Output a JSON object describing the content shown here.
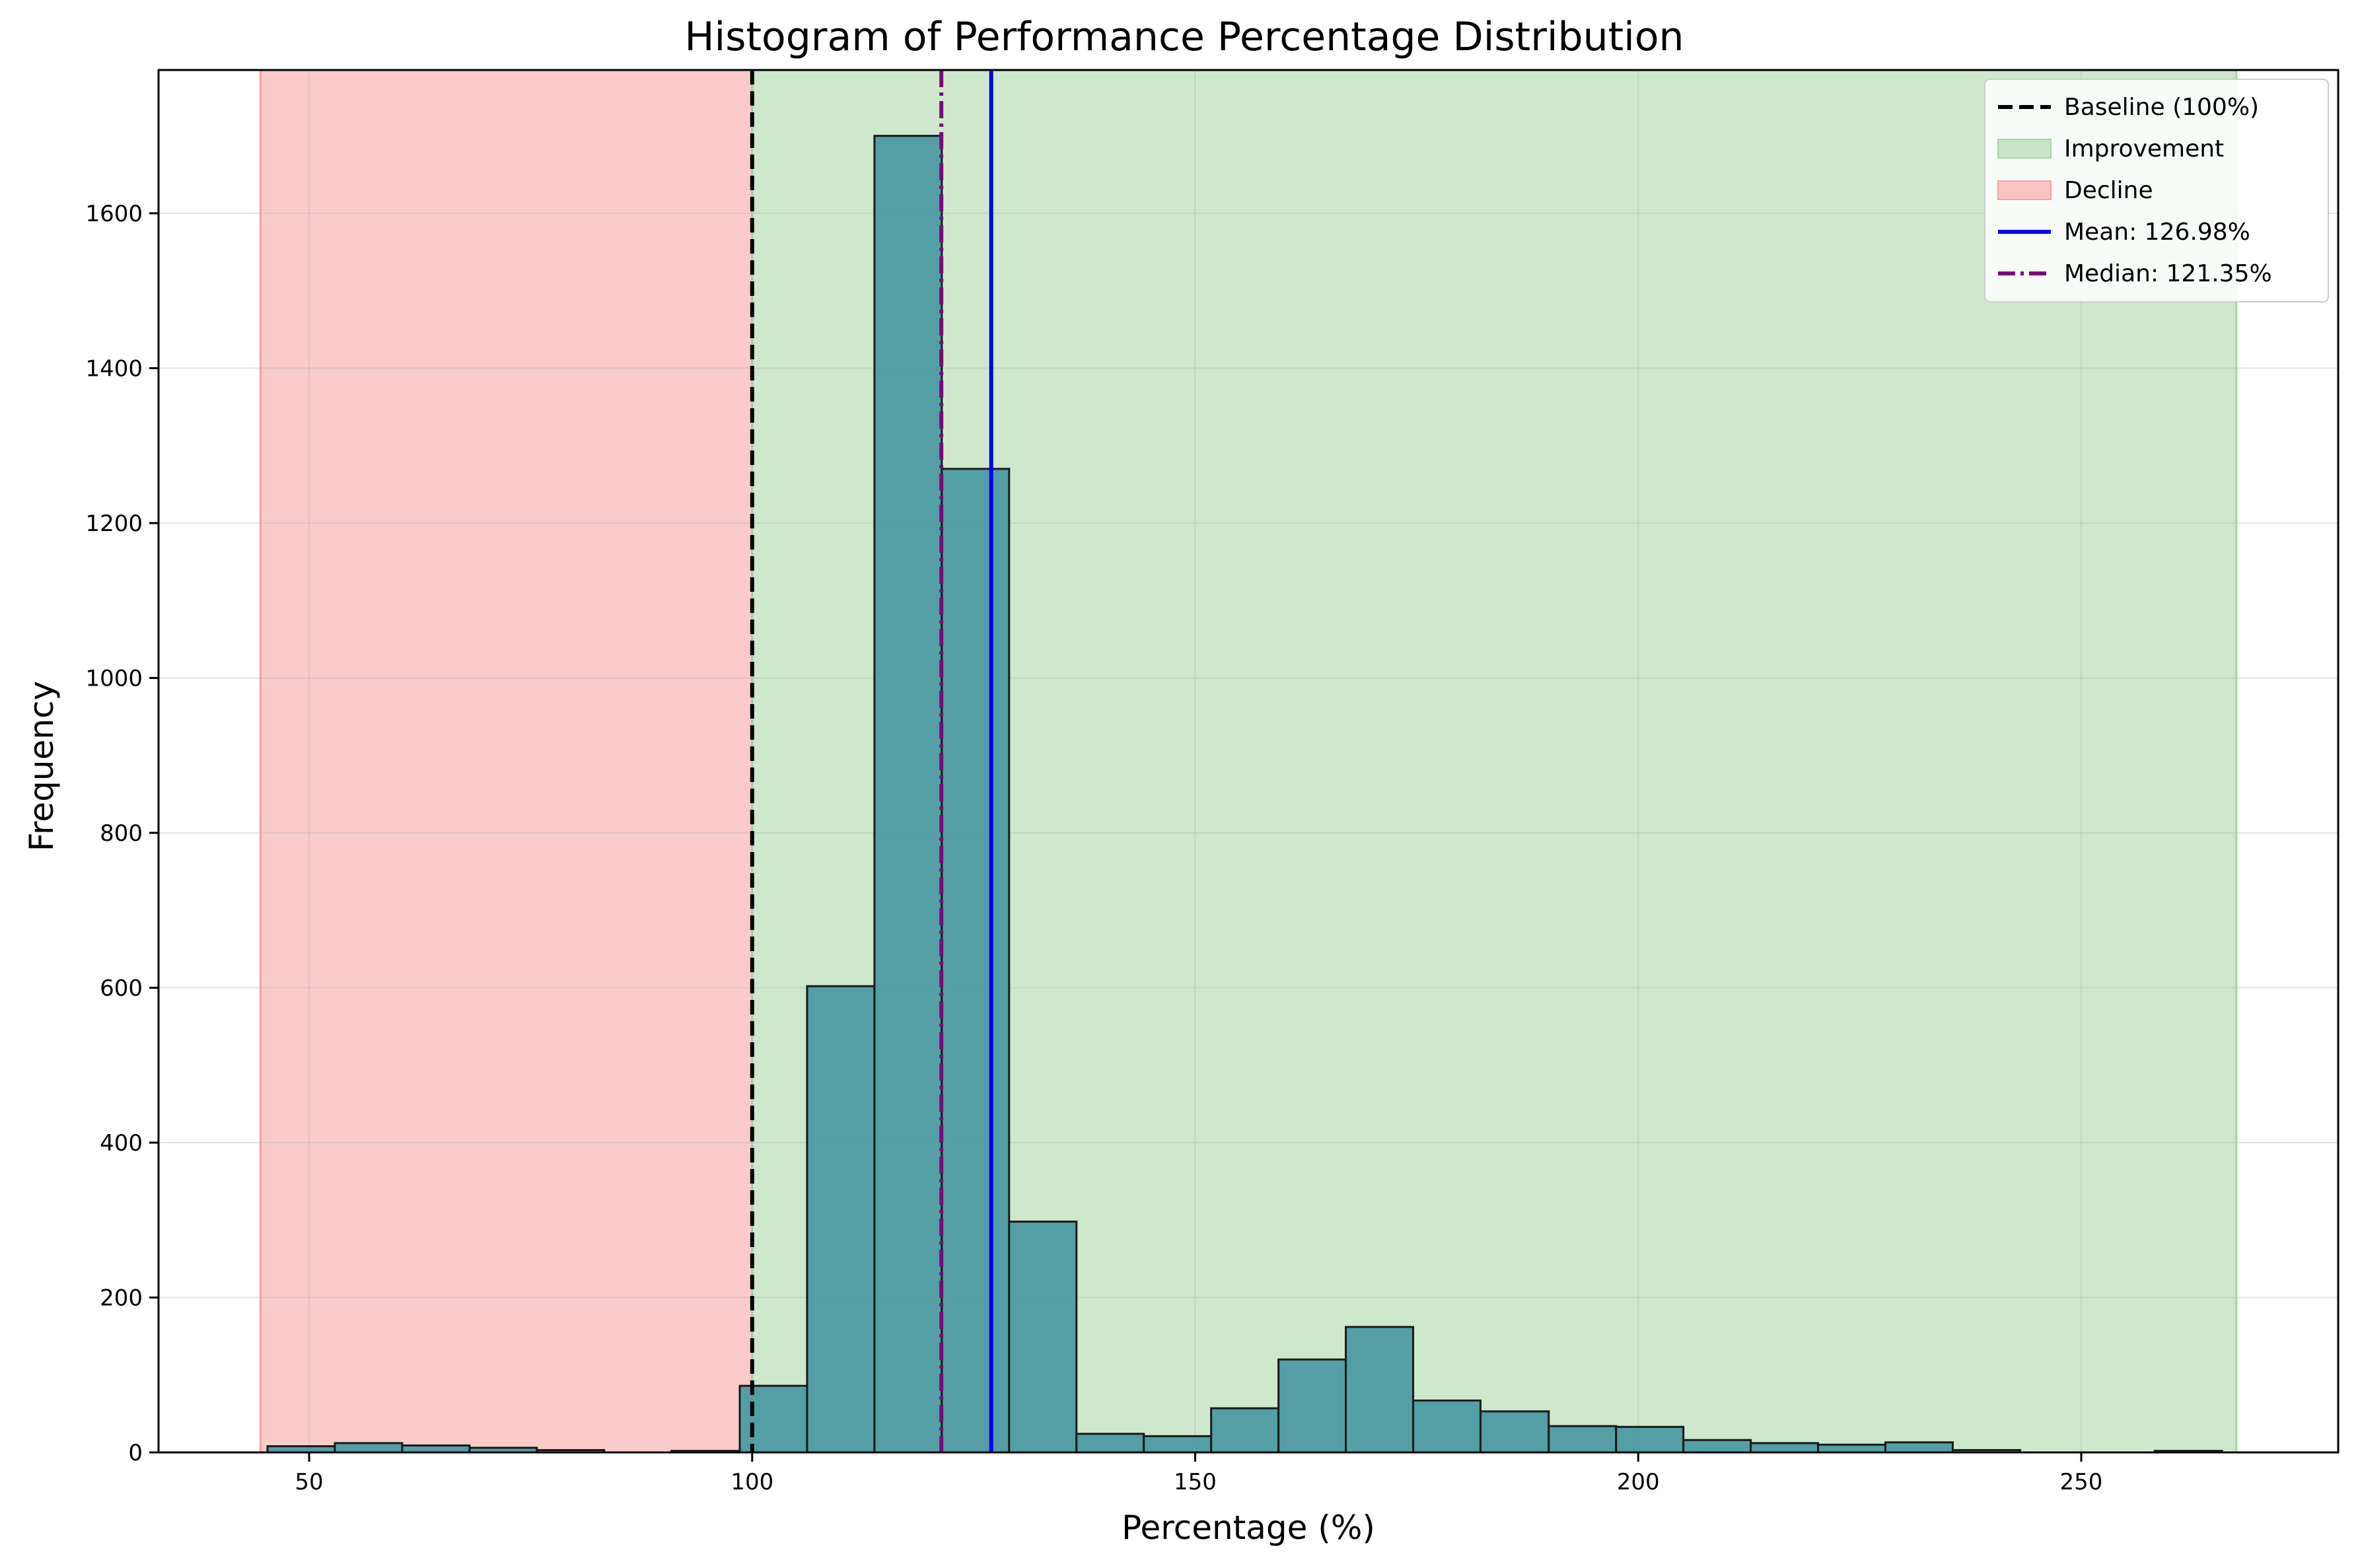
{
  "chart_data": {
    "type": "bar",
    "title": "Histogram of Performance Percentage Distribution",
    "xlabel": "Percentage (%)",
    "ylabel": "Frequency",
    "xlim": [
      33,
      279
    ],
    "ylim": [
      0,
      1785
    ],
    "xticks": [
      50,
      100,
      150,
      200,
      250
    ],
    "yticks": [
      0,
      200,
      400,
      600,
      800,
      1000,
      1200,
      1400,
      1600
    ],
    "grid": true,
    "bin_edges": [
      45.3,
      52.9,
      60.5,
      68.1,
      75.7,
      83.3,
      90.9,
      98.6,
      106.2,
      113.8,
      121.4,
      129.0,
      136.6,
      144.2,
      151.8,
      159.4,
      167.0,
      174.6,
      182.2,
      189.9,
      197.5,
      205.1,
      212.7,
      220.3,
      227.9,
      235.5,
      243.1,
      250.7,
      258.3,
      265.9
    ],
    "counts": [
      8,
      12,
      9,
      6,
      3,
      0,
      2,
      86,
      602,
      1700,
      1270,
      298,
      24,
      21,
      57,
      120,
      162,
      67,
      53,
      34,
      33,
      16,
      12,
      10,
      13,
      3,
      0,
      0,
      2
    ],
    "bar_color": "#4d9aa3",
    "regions": [
      {
        "name": "Decline",
        "from": 44.5,
        "to": 100,
        "color": "#f8a0a0"
      },
      {
        "name": "Improvement",
        "from": 100,
        "to": 267.5,
        "color": "#a6d5a6"
      }
    ],
    "reference_lines": [
      {
        "name": "Baseline (100%)",
        "x": 100,
        "color": "#000000",
        "style": "dashed"
      },
      {
        "name": "Mean: 126.98%",
        "x": 126.98,
        "color": "#0000ee",
        "style": "solid"
      },
      {
        "name": "Median: 121.35%",
        "x": 121.35,
        "color": "#7a0a7a",
        "style": "dashdot"
      }
    ],
    "legend": {
      "placement": "top-right",
      "entries": [
        {
          "label": "Baseline (100%)",
          "kind": "line",
          "color": "#000000",
          "style": "dashed"
        },
        {
          "label": "Improvement",
          "kind": "patch",
          "color": "#a6d5a6"
        },
        {
          "label": "Decline",
          "kind": "patch",
          "color": "#f8a0a0"
        },
        {
          "label": "Mean: 126.98%",
          "kind": "line",
          "color": "#0000ee",
          "style": "solid"
        },
        {
          "label": "Median: 121.35%",
          "kind": "line",
          "color": "#7a0a7a",
          "style": "dashdot"
        }
      ]
    }
  }
}
